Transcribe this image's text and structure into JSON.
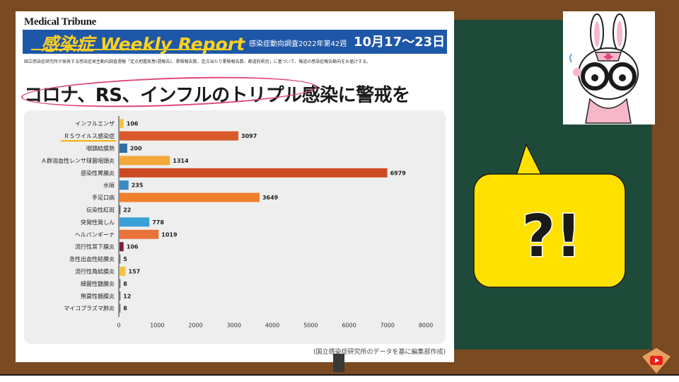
{
  "slide": {
    "masthead": "Medical Tribune",
    "banner_title": "感染症 Weekly Report",
    "banner_subtitle": "感染症動向調査2022年第42週",
    "banner_date": "10月17〜23日",
    "description": "国立感染症研究所が発表する感染症発生動向調査週報「定点把握疾患(週報告)、累積報告数、定点当たり累積報告数、都道府県別」に基づいて、報道の感染症報告動向をお届けする。",
    "headline": "コロナ、RS、インフルのトリプル感染に警戒を",
    "source": "(国立感染症研究所のデータを基に編集部作成)"
  },
  "speech_bubble": {
    "text": "?!"
  },
  "colors": {
    "frame": "#7a4a22",
    "board": "#1e4a3a",
    "banner": "#1f57a8",
    "banner_title": "#ffd21f",
    "bubble": "#ffe100",
    "highlight_oval": "#e0457a"
  },
  "icons": {
    "mascot": "nurse-rabbit-with-glasses-icon",
    "corner": "youtube-badge-icon"
  },
  "chart_data": {
    "type": "bar",
    "orientation": "horizontal",
    "categories": [
      "インフルエンザ",
      "ＲＳウイルス感染症",
      "咽頭結膜熱",
      "Ａ群溶血性レンサ球菌咽頭炎",
      "感染性胃腸炎",
      "水痘",
      "手足口病",
      "伝染性紅斑",
      "突発性発しん",
      "ヘルパンギーナ",
      "流行性耳下腺炎",
      "急性出血性結膜炎",
      "流行性角結膜炎",
      "細菌性髄膜炎",
      "無菌性髄膜炎",
      "マイコプラズマ肺炎"
    ],
    "values": [
      106,
      3097,
      200,
      1314,
      6979,
      235,
      3649,
      22,
      778,
      1019,
      106,
      5,
      157,
      8,
      12,
      8
    ],
    "value_labels": [
      "106",
      "3097",
      "200",
      "1314",
      "6979",
      "235",
      "3649",
      "22",
      "778",
      "1019",
      "106",
      "5",
      "157",
      "8",
      "12",
      "8"
    ],
    "bar_colors": [
      "#f5c242",
      "#d95a2b",
      "#2f6f9f",
      "#f3a93a",
      "#cc4a22",
      "#3a8ac4",
      "#f07f2e",
      "#444444",
      "#3aa0d8",
      "#e8733a",
      "#7a1f3d",
      "#555555",
      "#f5c242",
      "#555555",
      "#555555",
      "#555555"
    ],
    "xlim": [
      0,
      8000
    ],
    "x_ticks": [
      "0",
      "1000",
      "2000",
      "3000",
      "4000",
      "5000",
      "6000",
      "7000",
      "8000"
    ],
    "x_tick_values": [
      0,
      1000,
      2000,
      3000,
      4000,
      5000,
      6000,
      7000,
      8000
    ],
    "underlined_category": "ＲＳウイルス感染症",
    "grid": false
  }
}
